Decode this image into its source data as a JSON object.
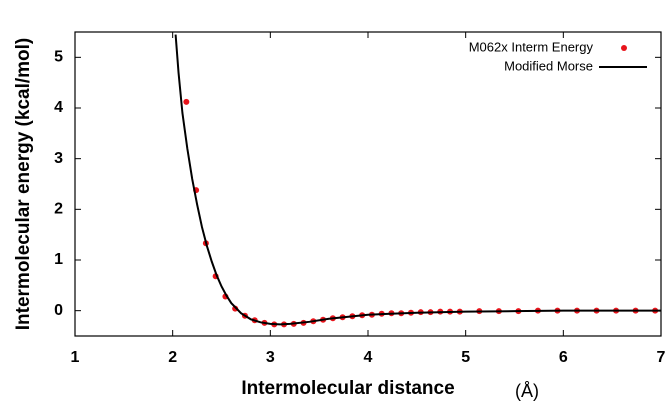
{
  "chart_data": {
    "type": "scatter",
    "x_label": "Intermolecular distance",
    "x_unit": "(Å)",
    "y_label": "Intermolecular energy (kcal/mol)",
    "xlim": [
      1,
      7
    ],
    "xticks": [
      1,
      2,
      3,
      4,
      5,
      6,
      7
    ],
    "ylim": [
      -0.5,
      5.5
    ],
    "yticks": [
      0,
      1,
      2,
      3,
      4,
      5
    ],
    "legend": "upper right",
    "series": [
      {
        "name": "M062x Interm Energy",
        "color": "#e8141b",
        "style": "markers",
        "x": [
          2.14,
          2.24,
          2.34,
          2.44,
          2.54,
          2.64,
          2.74,
          2.84,
          2.94,
          3.04,
          3.14,
          3.24,
          3.34,
          3.44,
          3.54,
          3.64,
          3.74,
          3.84,
          3.94,
          4.04,
          4.14,
          4.24,
          4.34,
          4.44,
          4.54,
          4.64,
          4.74,
          4.84,
          4.94,
          5.14,
          5.34,
          5.54,
          5.74,
          5.94,
          6.14,
          6.34,
          6.54,
          6.74,
          6.94
        ],
        "values": [
          4.12,
          2.38,
          1.33,
          0.68,
          0.28,
          0.04,
          -0.1,
          -0.19,
          -0.24,
          -0.27,
          -0.27,
          -0.26,
          -0.24,
          -0.21,
          -0.18,
          -0.15,
          -0.13,
          -0.11,
          -0.09,
          -0.08,
          -0.06,
          -0.05,
          -0.05,
          -0.04,
          -0.03,
          -0.03,
          -0.02,
          -0.02,
          -0.02,
          -0.01,
          -0.01,
          -0.01,
          0,
          0,
          0,
          0,
          0,
          0,
          0
        ]
      },
      {
        "name": "Modified Morse",
        "color": "#000000",
        "style": "line",
        "x": [
          2.03,
          2.06,
          2.1,
          2.15,
          2.2,
          2.25,
          2.3,
          2.35,
          2.4,
          2.45,
          2.5,
          2.55,
          2.6,
          2.7,
          2.8,
          2.9,
          3.0,
          3.1,
          3.2,
          3.4,
          3.6,
          3.8,
          4.0,
          4.5,
          5.0,
          5.5,
          6.0,
          7.0
        ],
        "values": [
          5.45,
          4.7,
          3.9,
          3.2,
          2.6,
          2.1,
          1.65,
          1.28,
          0.97,
          0.7,
          0.48,
          0.3,
          0.15,
          -0.05,
          -0.17,
          -0.23,
          -0.26,
          -0.27,
          -0.26,
          -0.22,
          -0.16,
          -0.12,
          -0.08,
          -0.04,
          -0.02,
          -0.01,
          0,
          0
        ]
      }
    ]
  }
}
